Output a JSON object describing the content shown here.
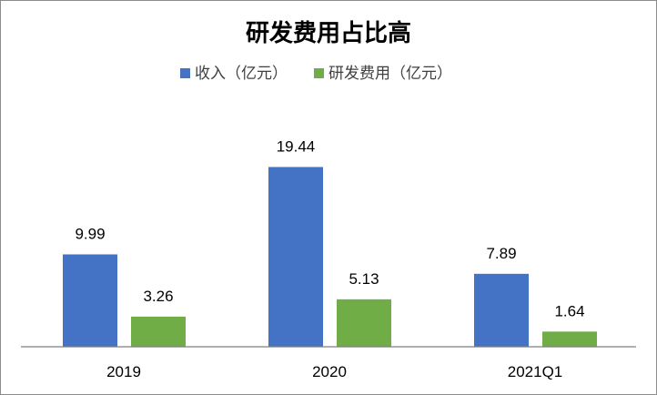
{
  "chart_data": {
    "type": "bar",
    "title": "研发费用占比高",
    "categories": [
      "2019",
      "2020",
      "2021Q1"
    ],
    "series": [
      {
        "name": "收入（亿元）",
        "values": [
          9.99,
          19.44,
          7.89
        ],
        "color": "#4472C4"
      },
      {
        "name": "研发费用（亿元）",
        "values": [
          3.26,
          5.13,
          1.64
        ],
        "color": "#70AD47"
      }
    ],
    "data_labels": [
      [
        "9.99",
        "19.44",
        "7.89"
      ],
      [
        "3.26",
        "5.13",
        "1.64"
      ]
    ],
    "ylim": [
      0,
      19.44
    ],
    "grid": false,
    "legend_position": "top"
  }
}
